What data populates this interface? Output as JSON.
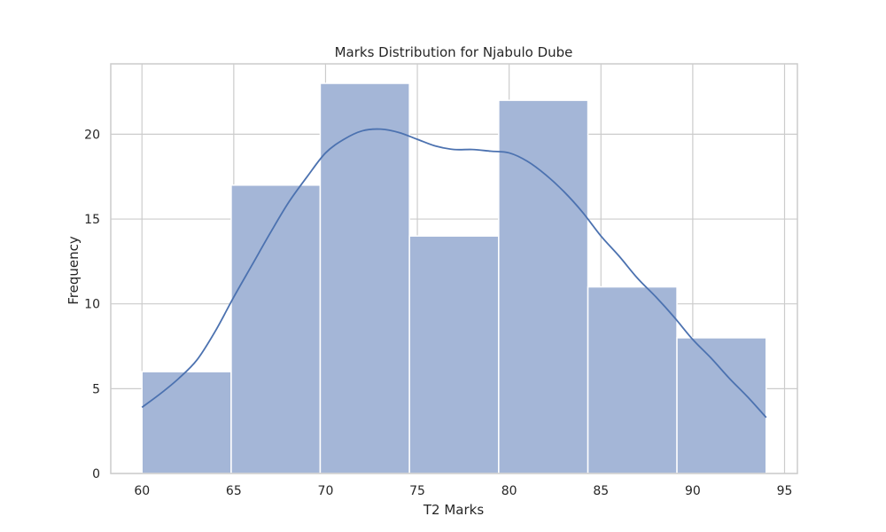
{
  "chart_data": {
    "type": "bar",
    "title": "Marks Distribution for Njabulo Dube",
    "xlabel": "T2 Marks",
    "ylabel": "Frequency",
    "xlim": [
      58.3,
      95.7
    ],
    "ylim": [
      0,
      24.15
    ],
    "x_ticks": [
      60,
      65,
      70,
      75,
      80,
      85,
      90,
      95
    ],
    "y_ticks": [
      0,
      5,
      10,
      15,
      20
    ],
    "grid": true,
    "bins": [
      {
        "start": 60.0,
        "end": 64.86,
        "count": 6
      },
      {
        "start": 64.86,
        "end": 69.71,
        "count": 17
      },
      {
        "start": 69.71,
        "end": 74.57,
        "count": 23
      },
      {
        "start": 74.57,
        "end": 79.43,
        "count": 14
      },
      {
        "start": 79.43,
        "end": 84.29,
        "count": 22
      },
      {
        "start": 84.29,
        "end": 89.14,
        "count": 11
      },
      {
        "start": 89.14,
        "end": 94.0,
        "count": 8
      }
    ],
    "kde": {
      "x": [
        60,
        61,
        62,
        63,
        64,
        65,
        66,
        67,
        68,
        69,
        70,
        71,
        72,
        73,
        74,
        75,
        76,
        77,
        78,
        79,
        80,
        81,
        82,
        83,
        84,
        85,
        86,
        87,
        88,
        89,
        90,
        91,
        92,
        93,
        94
      ],
      "y": [
        3.9,
        4.7,
        5.6,
        6.7,
        8.4,
        10.4,
        12.3,
        14.2,
        16.0,
        17.5,
        18.9,
        19.7,
        20.2,
        20.3,
        20.1,
        19.7,
        19.3,
        19.1,
        19.1,
        19.0,
        18.9,
        18.4,
        17.6,
        16.6,
        15.4,
        14.0,
        12.8,
        11.5,
        10.4,
        9.2,
        7.9,
        6.8,
        5.6,
        4.5,
        3.3
      ]
    },
    "colors": {
      "bar_fill": "#a4b6d7",
      "bar_edge": "#ffffff",
      "kde_line": "#4c72b0",
      "grid": "#cccccc",
      "spine": "#cccccc",
      "text": "#262626"
    }
  }
}
